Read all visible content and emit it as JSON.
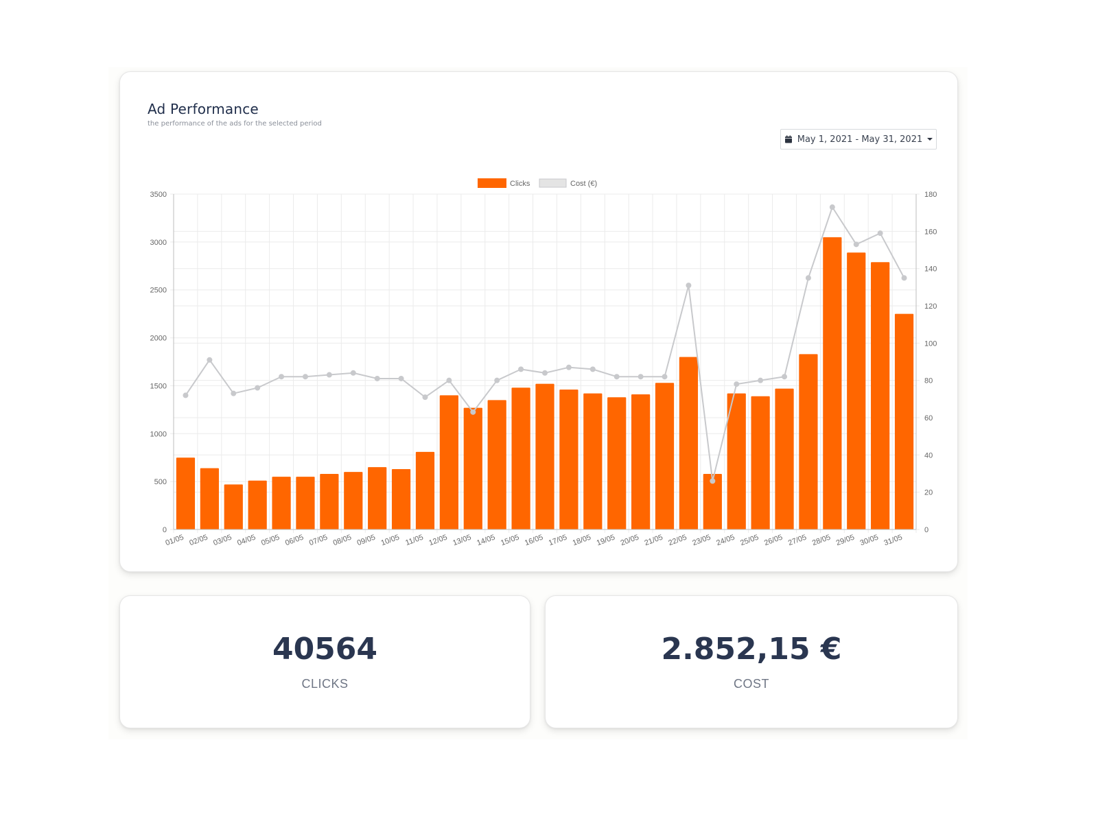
{
  "main_card": {
    "title": "Ad Performance",
    "subtitle": "the performance of the ads for the selected period",
    "date_range": {
      "icon": "calendar-icon",
      "label": "May 1, 2021 - May 31, 2021",
      "dropdown_icon": "caret-down-icon"
    }
  },
  "colors": {
    "clicks": "#ff6600",
    "cost_line": "#c8c9cc",
    "cost_legend_fill": "#e4e4e4",
    "grid": "#ebebeb",
    "axis_text": "#666666"
  },
  "chart_data": {
    "type": "bar",
    "title": "Ad Performance",
    "categories": [
      "01/05",
      "02/05",
      "03/05",
      "04/05",
      "05/05",
      "06/05",
      "07/05",
      "08/05",
      "09/05",
      "10/05",
      "11/05",
      "12/05",
      "13/05",
      "14/05",
      "15/05",
      "16/05",
      "17/05",
      "18/05",
      "19/05",
      "20/05",
      "21/05",
      "22/05",
      "23/05",
      "24/05",
      "25/05",
      "26/05",
      "27/05",
      "28/05",
      "29/05",
      "30/05",
      "31/05"
    ],
    "series": [
      {
        "name": "Clicks",
        "type": "bar",
        "axis": "left",
        "values": [
          750,
          640,
          470,
          510,
          550,
          550,
          580,
          600,
          650,
          630,
          810,
          1400,
          1270,
          1350,
          1480,
          1520,
          1460,
          1420,
          1380,
          1410,
          1530,
          1800,
          580,
          1420,
          1390,
          1470,
          1830,
          3050,
          2890,
          2790,
          2250
        ]
      },
      {
        "name": "Cost (€)",
        "type": "line",
        "axis": "right",
        "values": [
          72,
          91,
          73,
          76,
          82,
          82,
          83,
          84,
          81,
          81,
          71,
          80,
          63,
          80,
          86,
          84,
          87,
          86,
          82,
          82,
          82,
          131,
          26,
          78,
          80,
          82,
          135,
          173,
          153,
          159,
          135
        ]
      }
    ],
    "left_axis": {
      "ylim": [
        0,
        3500
      ],
      "ticks": [
        0,
        500,
        1000,
        1500,
        2000,
        2500,
        3000,
        3500
      ]
    },
    "right_axis": {
      "ylim": [
        0,
        180
      ],
      "ticks": [
        0,
        20,
        40,
        60,
        80,
        100,
        120,
        140,
        160,
        180
      ]
    },
    "legend": {
      "position": "top-center",
      "entries": [
        "Clicks",
        "Cost (€)"
      ]
    },
    "grid": true,
    "xlabel": "",
    "ylabel": ""
  },
  "stats": {
    "clicks": {
      "value": "40564",
      "label": "CLICKS"
    },
    "cost": {
      "value": "2.852,15 €",
      "label": "COST"
    }
  }
}
